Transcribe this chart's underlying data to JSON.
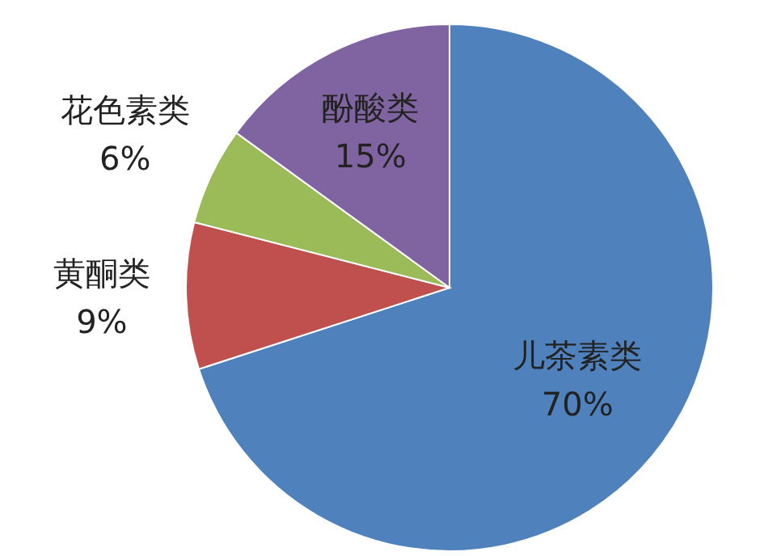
{
  "chart_data": {
    "type": "pie",
    "categories": [
      "儿茶素类",
      "黄酮类",
      "花色素类",
      "酚酸类"
    ],
    "values": [
      70,
      9,
      6,
      15
    ],
    "colors": [
      "#4f81bd",
      "#c0504d",
      "#9bbb59",
      "#8064a2"
    ],
    "value_labels": [
      "70%",
      "9%",
      "6%",
      "15%"
    ]
  }
}
